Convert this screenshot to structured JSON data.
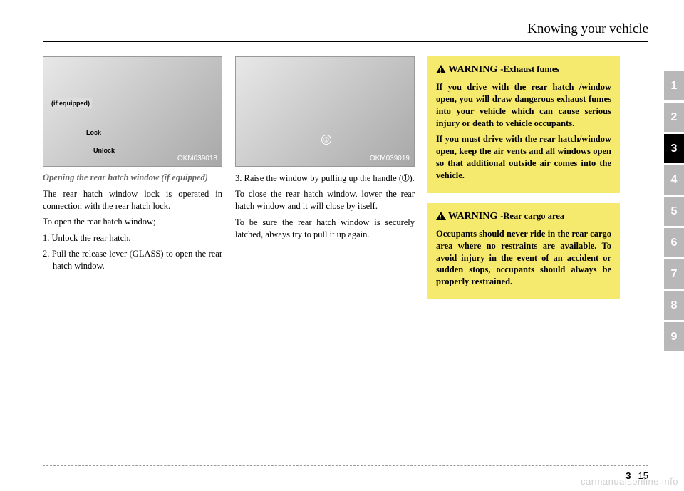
{
  "header": {
    "title": "Knowing your vehicle"
  },
  "col1": {
    "figure": {
      "label": "OKM039018",
      "overlay_equipped": "(if equipped)",
      "lock": "Lock",
      "unlock": "Unlock"
    },
    "subheading": "Opening the rear hatch window (if equipped)",
    "p1": "The rear hatch window lock is oper­ated in connection with the rear hatch lock.",
    "p2": "To open the rear hatch window;",
    "li1": "1. Unlock the rear hatch.",
    "li2": "2. Pull the release lever (GLASS) to open the rear hatch window."
  },
  "col2": {
    "figure": {
      "label": "OKM039019",
      "num": "➀"
    },
    "li3": "3. Raise the window by pulling up the handle (➀).",
    "p1": "To close the rear hatch window, lower the rear hatch window and it will close by itself.",
    "p2": "To be sure the rear hatch window is securely latched, always try to pull it up again."
  },
  "col3": {
    "warning1": {
      "word": "WARNING",
      "dash": " - ",
      "sub": "Exhaust fumes",
      "p1": "If you drive with the rear hatch /window open, you will draw dangerous exhaust fumes into your vehicle which can cause serious injury or death to vehi­cle occupants.",
      "p2": "If you must drive with the rear hatch/window open, keep the air vents and all windows open so that additional outside air comes into the vehicle."
    },
    "warning2": {
      "word": "WARNING",
      "dash": " - ",
      "sub": "Rear cargo area",
      "p1": "Occupants should never ride in the rear cargo area where no restraints are available. To avoid injury in the event of an acci­dent or sudden stops, occu­pants should always be proper­ly restrained."
    }
  },
  "tabs": {
    "items": [
      "1",
      "2",
      "3",
      "4",
      "5",
      "6",
      "7",
      "8",
      "9"
    ],
    "active_index": 2
  },
  "footer": {
    "section": "3",
    "page": "15"
  },
  "watermark": "carmanualsonline.info"
}
